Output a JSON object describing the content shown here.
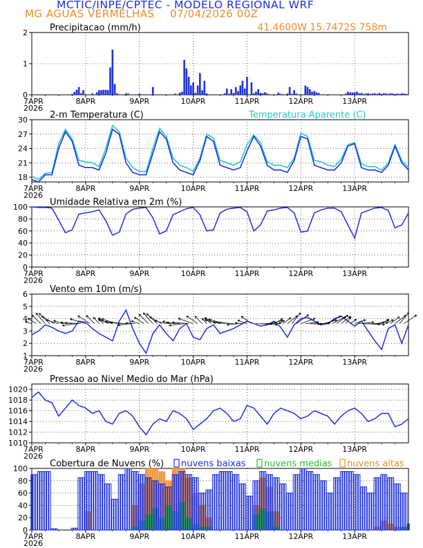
{
  "header": {
    "title": "MCTIC/INPE/CPTEC - MODELO REGIONAL WRF",
    "location": "MG AGUAS VERMELHAS",
    "run": "07/04/2026 00Z",
    "coords": "41.4600W 15.7472S 758m"
  },
  "colors": {
    "blue": "#1c2fe0",
    "cyan": "#20c8c8",
    "green": "#22c422",
    "orange": "#f08a24",
    "black": "#000000"
  },
  "x_axis": {
    "ticks": [
      "7APR",
      "8APR",
      "9APR",
      "10APR",
      "11APR",
      "12APR",
      "13APR"
    ],
    "year": "2026",
    "range_hours": [
      0,
      168
    ]
  },
  "chart_data": [
    {
      "id": "precip",
      "type": "bar",
      "title": "Precipitacao (mm/h)",
      "ylim": [
        0,
        2
      ],
      "yticks": [
        0,
        1,
        2
      ],
      "hours": [
        18,
        19,
        20,
        21,
        22,
        23,
        27,
        29,
        30,
        31,
        32,
        33,
        34,
        35,
        36,
        37,
        38,
        42,
        43,
        48,
        54,
        64,
        66,
        67,
        68,
        69,
        70,
        71,
        72,
        73,
        74,
        75,
        76,
        77,
        78,
        86,
        87,
        88,
        89,
        90,
        91,
        92,
        93,
        94,
        95,
        96,
        98,
        99,
        100,
        101,
        102,
        103,
        104,
        105,
        110,
        111,
        114,
        115,
        116,
        117,
        118,
        122,
        123,
        124,
        125,
        126,
        127,
        128,
        140,
        141,
        142,
        143,
        144,
        145,
        146,
        147,
        148,
        149,
        150,
        151,
        152,
        153,
        154,
        155,
        156,
        157,
        158,
        159,
        160,
        161,
        162,
        163,
        164,
        165,
        166,
        167
      ],
      "values": [
        0.03,
        0.09,
        0.16,
        0.25,
        0.05,
        0.15,
        0.05,
        0.08,
        0.15,
        0.15,
        0.16,
        0.16,
        0.15,
        0.88,
        1.45,
        0.35,
        0.05,
        0.05,
        0.04,
        0.04,
        0.25,
        0.04,
        0.07,
        0.1,
        1.12,
        0.85,
        0.58,
        0.3,
        0.4,
        0.06,
        0.3,
        0.7,
        0.15,
        0.45,
        0.05,
        0.05,
        0.2,
        0.03,
        0.18,
        0.06,
        0.25,
        0.12,
        0.3,
        0.45,
        0.2,
        0.58,
        0.4,
        0.05,
        0.1,
        0.18,
        0.06,
        0.05,
        0.08,
        0.04,
        0.07,
        0.03,
        0.04,
        0.25,
        0.03,
        0.15,
        0.04,
        0.3,
        0.25,
        0.18,
        0.1,
        0.12,
        0.08,
        0.06,
        0.04,
        0.1,
        0.08,
        0.07,
        0.08,
        0.1,
        0.05,
        0.06,
        0.03,
        0.04,
        0.05,
        0.03,
        0.04,
        0.05,
        0.03,
        0.06,
        0.03,
        0.05,
        0.04,
        0.03,
        0.05,
        0.04,
        0.03,
        0.04,
        0.03,
        0.05,
        0.04,
        0.03
      ]
    },
    {
      "id": "temp",
      "type": "line",
      "title": "2-m Temperatura (C)",
      "legend": "Temperatura Aparente (C)",
      "ylim": [
        17,
        30
      ],
      "yticks": [
        18,
        21,
        24,
        27,
        30
      ],
      "x_hours": [
        0,
        3,
        6,
        9,
        12,
        15,
        18,
        21,
        24,
        27,
        30,
        33,
        36,
        39,
        42,
        45,
        48,
        51,
        54,
        57,
        60,
        63,
        66,
        69,
        72,
        75,
        78,
        81,
        84,
        87,
        90,
        93,
        96,
        99,
        102,
        105,
        108,
        111,
        114,
        117,
        120,
        123,
        126,
        129,
        132,
        135,
        138,
        141,
        144,
        147,
        150,
        153,
        156,
        159,
        162,
        165,
        168
      ],
      "series": [
        {
          "name": "temperature",
          "values": [
            17.5,
            17.0,
            18.5,
            18.5,
            24.0,
            27.5,
            25.5,
            20.5,
            20.0,
            20.0,
            19.5,
            23.0,
            28.0,
            27.0,
            21.0,
            19.0,
            18.5,
            18.5,
            23.0,
            27.5,
            26.0,
            21.0,
            19.5,
            19.0,
            18.5,
            21.5,
            26.5,
            25.5,
            20.5,
            20.0,
            19.5,
            20.0,
            23.5,
            26.5,
            24.5,
            20.5,
            19.5,
            19.5,
            19.0,
            21.5,
            26.5,
            26.0,
            20.5,
            20.0,
            19.5,
            19.5,
            21.0,
            24.5,
            25.0,
            20.0,
            19.5,
            19.5,
            19.0,
            20.5,
            24.5,
            21.0,
            19.5
          ]
        },
        {
          "name": "apparent",
          "values": [
            18.2,
            17.5,
            18.8,
            19.0,
            25.0,
            28.0,
            26.0,
            21.5,
            21.2,
            21.0,
            20.2,
            24.0,
            28.8,
            27.5,
            22.0,
            20.0,
            19.2,
            19.2,
            24.0,
            28.2,
            26.5,
            22.0,
            20.5,
            20.0,
            19.2,
            22.0,
            27.0,
            26.2,
            21.5,
            21.0,
            20.5,
            21.2,
            24.8,
            26.8,
            25.2,
            21.2,
            20.5,
            20.5,
            20.0,
            22.0,
            27.2,
            26.5,
            21.5,
            21.2,
            20.5,
            20.2,
            21.8,
            24.8,
            25.2,
            20.8,
            20.2,
            20.2,
            19.5,
            21.0,
            24.8,
            21.5,
            20.0
          ]
        }
      ]
    },
    {
      "id": "rh",
      "type": "line",
      "title": "Umidade Relativa em 2m (%)",
      "ylim": [
        0,
        100
      ],
      "yticks": [
        0,
        20,
        40,
        60,
        80,
        100
      ],
      "x_hours": [
        0,
        3,
        6,
        9,
        12,
        15,
        18,
        21,
        24,
        27,
        30,
        33,
        36,
        39,
        42,
        45,
        48,
        51,
        54,
        57,
        60,
        63,
        66,
        69,
        72,
        75,
        78,
        81,
        84,
        87,
        90,
        93,
        96,
        99,
        102,
        105,
        108,
        111,
        114,
        117,
        120,
        123,
        126,
        129,
        132,
        135,
        138,
        141,
        144,
        147,
        150,
        153,
        156,
        159,
        162,
        165,
        168
      ],
      "values": [
        100,
        99,
        99,
        98,
        78,
        57,
        62,
        88,
        90,
        92,
        95,
        77,
        53,
        58,
        88,
        96,
        98,
        99,
        82,
        55,
        60,
        87,
        92,
        97,
        99,
        87,
        60,
        62,
        90,
        96,
        98,
        99,
        92,
        60,
        70,
        93,
        95,
        98,
        99,
        90,
        58,
        60,
        90,
        95,
        98,
        98,
        92,
        70,
        48,
        90,
        94,
        98,
        99,
        94,
        65,
        70,
        90
      ]
    },
    {
      "id": "wind",
      "type": "line",
      "title": "Vento em 10m (m/s)",
      "ylim": [
        1,
        6
      ],
      "yticks": [
        1,
        2,
        3,
        4,
        5,
        6
      ],
      "x_hours": [
        0,
        3,
        6,
        9,
        12,
        15,
        18,
        21,
        24,
        27,
        30,
        33,
        36,
        39,
        42,
        45,
        48,
        51,
        54,
        57,
        60,
        63,
        66,
        69,
        72,
        75,
        78,
        81,
        84,
        87,
        90,
        93,
        96,
        99,
        102,
        105,
        108,
        111,
        114,
        117,
        120,
        123,
        126,
        129,
        132,
        135,
        138,
        141,
        144,
        147,
        150,
        153,
        156,
        159,
        162,
        165,
        168
      ],
      "values": [
        2.7,
        3.0,
        3.5,
        3.3,
        3.0,
        2.8,
        3.0,
        3.8,
        3.7,
        3.2,
        2.8,
        2.5,
        2.2,
        3.8,
        4.7,
        3.2,
        2.0,
        1.2,
        2.8,
        3.5,
        2.8,
        2.2,
        3.2,
        3.6,
        2.5,
        2.3,
        3.2,
        3.5,
        2.8,
        3.0,
        3.2,
        3.5,
        3.8,
        3.6,
        3.4,
        3.5,
        3.8,
        3.3,
        2.5,
        3.5,
        4.0,
        4.1,
        3.8,
        3.5,
        3.6,
        4.0,
        4.2,
        3.8,
        3.4,
        3.8,
        3.0,
        2.2,
        1.5,
        3.2,
        3.5,
        2.0,
        3.5
      ]
    },
    {
      "id": "pressure",
      "type": "line",
      "title": "Pressao ao Nivel Medio do Mar (hPa)",
      "ylim": [
        1010,
        1021
      ],
      "yticks": [
        1010,
        1012,
        1014,
        1016,
        1018,
        1020
      ],
      "x_hours": [
        0,
        3,
        6,
        9,
        12,
        15,
        18,
        21,
        24,
        27,
        30,
        33,
        36,
        39,
        42,
        45,
        48,
        51,
        54,
        57,
        60,
        63,
        66,
        69,
        72,
        75,
        78,
        81,
        84,
        87,
        90,
        93,
        96,
        99,
        102,
        105,
        108,
        111,
        114,
        117,
        120,
        123,
        126,
        129,
        132,
        135,
        138,
        141,
        144,
        147,
        150,
        153,
        156,
        159,
        162,
        165,
        168
      ],
      "values": [
        1018.5,
        1019.5,
        1018.0,
        1017.5,
        1015.0,
        1016.5,
        1018.0,
        1017.0,
        1016.5,
        1015.5,
        1016.0,
        1014.0,
        1013.5,
        1015.5,
        1016.0,
        1015.0,
        1013.0,
        1011.5,
        1013.5,
        1014.5,
        1014.0,
        1016.0,
        1015.5,
        1014.5,
        1012.5,
        1013.5,
        1014.5,
        1016.0,
        1016.5,
        1015.5,
        1014.0,
        1014.5,
        1017.0,
        1016.5,
        1015.0,
        1013.5,
        1015.5,
        1016.5,
        1016.0,
        1015.5,
        1014.5,
        1015.0,
        1016.0,
        1015.5,
        1015.0,
        1013.5,
        1015.0,
        1016.0,
        1016.5,
        1015.5,
        1014.0,
        1014.5,
        1015.5,
        1015.5,
        1013.0,
        1013.5,
        1014.5
      ]
    },
    {
      "id": "clouds",
      "type": "bar",
      "title": "Cobertura de Nuvens (%)",
      "ylim": [
        0,
        100
      ],
      "yticks": [
        0,
        20,
        40,
        60,
        80,
        100
      ],
      "legend": [
        "nuvens baixas",
        "nuvens medias",
        "nuvens altas"
      ],
      "hours": [
        0,
        3,
        6,
        9,
        12,
        15,
        18,
        21,
        24,
        27,
        30,
        33,
        36,
        39,
        42,
        45,
        48,
        51,
        54,
        57,
        60,
        63,
        66,
        69,
        72,
        75,
        78,
        81,
        84,
        87,
        90,
        93,
        96,
        99,
        102,
        105,
        108,
        111,
        114,
        117,
        120,
        123,
        126,
        129,
        132,
        135,
        138,
        141,
        144,
        147,
        150,
        153,
        156,
        159,
        162,
        165,
        168
      ],
      "series": [
        {
          "name": "nuvens baixas",
          "values": [
            90,
            95,
            95,
            2,
            0,
            0,
            3,
            85,
            95,
            95,
            90,
            75,
            50,
            90,
            100,
            95,
            90,
            85,
            80,
            75,
            70,
            90,
            95,
            90,
            85,
            60,
            65,
            90,
            95,
            95,
            90,
            75,
            55,
            80,
            95,
            90,
            85,
            75,
            60,
            90,
            100,
            95,
            90,
            80,
            60,
            85,
            95,
            95,
            90,
            70,
            60,
            85,
            90,
            85,
            75,
            60,
            10
          ]
        },
        {
          "name": "nuvens medias",
          "values": [
            0,
            0,
            0,
            0,
            0,
            0,
            0,
            0,
            0,
            0,
            0,
            0,
            0,
            0,
            0,
            5,
            15,
            25,
            35,
            20,
            40,
            30,
            45,
            20,
            10,
            5,
            5,
            0,
            0,
            0,
            0,
            0,
            0,
            25,
            35,
            30,
            5,
            0,
            0,
            0,
            0,
            0,
            0,
            0,
            0,
            0,
            0,
            0,
            0,
            0,
            0,
            0,
            0,
            0,
            0,
            5,
            0
          ]
        },
        {
          "name": "nuvens altas",
          "values": [
            0,
            0,
            0,
            0,
            0,
            0,
            0,
            0,
            30,
            0,
            0,
            0,
            0,
            0,
            0,
            40,
            75,
            100,
            100,
            95,
            80,
            100,
            100,
            85,
            60,
            40,
            20,
            0,
            0,
            0,
            0,
            0,
            0,
            40,
            85,
            70,
            30,
            0,
            0,
            0,
            0,
            0,
            0,
            0,
            0,
            0,
            0,
            0,
            0,
            0,
            0,
            5,
            15,
            10,
            5,
            0,
            0
          ]
        }
      ]
    }
  ]
}
